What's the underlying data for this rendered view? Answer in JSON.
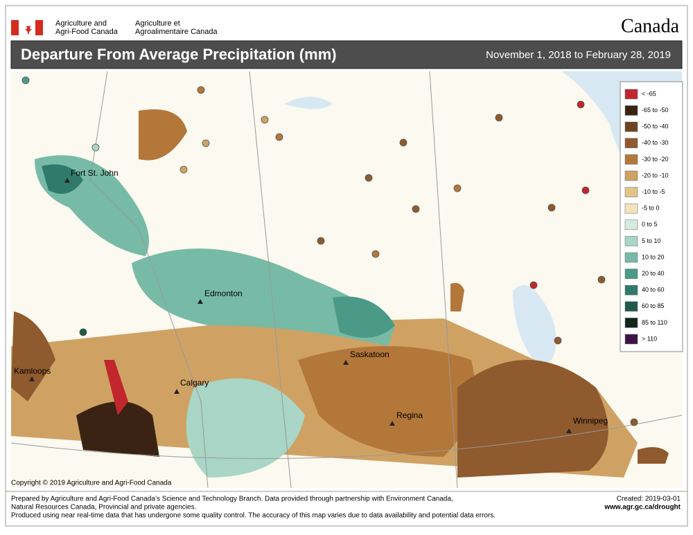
{
  "header": {
    "agency_en_1": "Agriculture and",
    "agency_en_2": "Agri-Food Canada",
    "agency_fr_1": "Agriculture et",
    "agency_fr_2": "Agroalimentaire Canada",
    "wordmark": "Canada"
  },
  "title": "Departure From Average Precipitation (mm)",
  "date_range": "November 1, 2018 to February 28, 2019",
  "legend": {
    "items": [
      {
        "label": "< -65",
        "color": "#c1272d"
      },
      {
        "label": "-65 to -50",
        "color": "#3b2313"
      },
      {
        "label": "-50 to -40",
        "color": "#6e4323"
      },
      {
        "label": "-40 to -30",
        "color": "#8f5a2e"
      },
      {
        "label": "-30 to -20",
        "color": "#b3773a"
      },
      {
        "label": "-20 to -10",
        "color": "#cfa264"
      },
      {
        "label": "-10 to -5",
        "color": "#e2c48b"
      },
      {
        "label": "-5 to 0",
        "color": "#f2e3bd"
      },
      {
        "label": "0 to 5",
        "color": "#d6ebdf"
      },
      {
        "label": "5 to 10",
        "color": "#a9d6c6"
      },
      {
        "label": "10 to 20",
        "color": "#77bba6"
      },
      {
        "label": "20 to 40",
        "color": "#4b9a88"
      },
      {
        "label": "40 to 60",
        "color": "#2f7a6a"
      },
      {
        "label": "60 to 85",
        "color": "#1f5a4c"
      },
      {
        "label": "85 to 110",
        "color": "#12261c"
      },
      {
        "label": "> 110",
        "color": "#3b1445"
      }
    ]
  },
  "cities": [
    "Fort St. John",
    "Edmonton",
    "Kamloops",
    "Calgary",
    "Saskatoon",
    "Regina",
    "Winnipeg"
  ],
  "copyright": "Copyright © 2019 Agriculture and Agri-Food Canada",
  "footer": {
    "line_1": "Prepared by Agriculture and Agri-Food Canada’s Science and Technology Branch. Data provided through partnership with Environment Canada,",
    "line_2": "Natural Resources Canada, Provincial and private agencies.",
    "line_3": "Produced using near real-time data that has undergone some quality control. The accuracy of this map varies due to data availability and potential data errors.",
    "created": "Created: 2019-03-01",
    "url": "www.agr.gc.ca/drought"
  }
}
